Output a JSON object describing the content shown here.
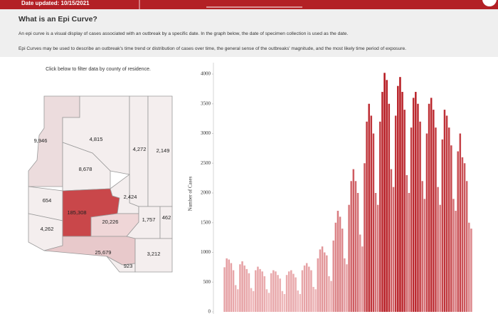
{
  "header": {
    "date": "Date updated: 10/15/2021"
  },
  "info": {
    "title": "What is an Epi Curve?",
    "paragraphs": [
      "An epi curve is a visual display of cases associated with an outbreak by a specific date.  In the graph below, the date of specimen collection is used as the date.",
      "Epi Curves may be used to describe an outbreak's time trend or distribution of cases over time, the general sense of the outbreaks' magnitude, and the most likely time period of exposure."
    ]
  },
  "map": {
    "instruction": "Click below to filter data by county of residence.",
    "labels": [
      "9,946",
      "4,815",
      "8,678",
      "4,272",
      "2,149",
      "654",
      "4,262",
      "185,308",
      "2,424",
      "20,226",
      "1,757",
      "462",
      "25,679",
      "923",
      "3,212"
    ]
  },
  "chart_data": {
    "type": "bar",
    "y_label": "Number of Cases",
    "values": [
      750,
      900,
      880,
      820,
      700,
      450,
      380,
      800,
      850,
      780,
      720,
      650,
      400,
      350,
      700,
      760,
      720,
      680,
      600,
      380,
      320,
      650,
      700,
      680,
      620,
      560,
      350,
      300,
      620,
      680,
      700,
      640,
      580,
      360,
      300,
      700,
      780,
      820,
      760,
      700,
      420,
      380,
      900,
      1050,
      1100,
      1000,
      950,
      600,
      520,
      1200,
      1500,
      1700,
      1600,
      1400,
      900,
      800,
      1800,
      2200,
      2400,
      2200,
      2000,
      1300,
      1100,
      2500,
      3200,
      3500,
      3300,
      3000,
      2000,
      1800,
      3200,
      3700,
      4020,
      3900,
      3500,
      2400,
      2100,
      3300,
      3800,
      3950,
      3700,
      3400,
      2300,
      2000,
      3100,
      3600,
      3700,
      3500,
      3200,
      2200,
      1900,
      3000,
      3500,
      3600,
      3400,
      3100,
      2100,
      1800,
      2900,
      3400,
      3300,
      3100,
      2800,
      1900,
      1700,
      2700,
      3000,
      2600,
      2500,
      2200,
      1500,
      1400
    ],
    "colors": [
      "#f3c6c8",
      "#b5161d"
    ],
    "ylim": [
      0,
      4000
    ],
    "yticks": [
      0,
      500,
      1000,
      1500,
      2000,
      2500,
      3000,
      3500,
      4000
    ]
  }
}
